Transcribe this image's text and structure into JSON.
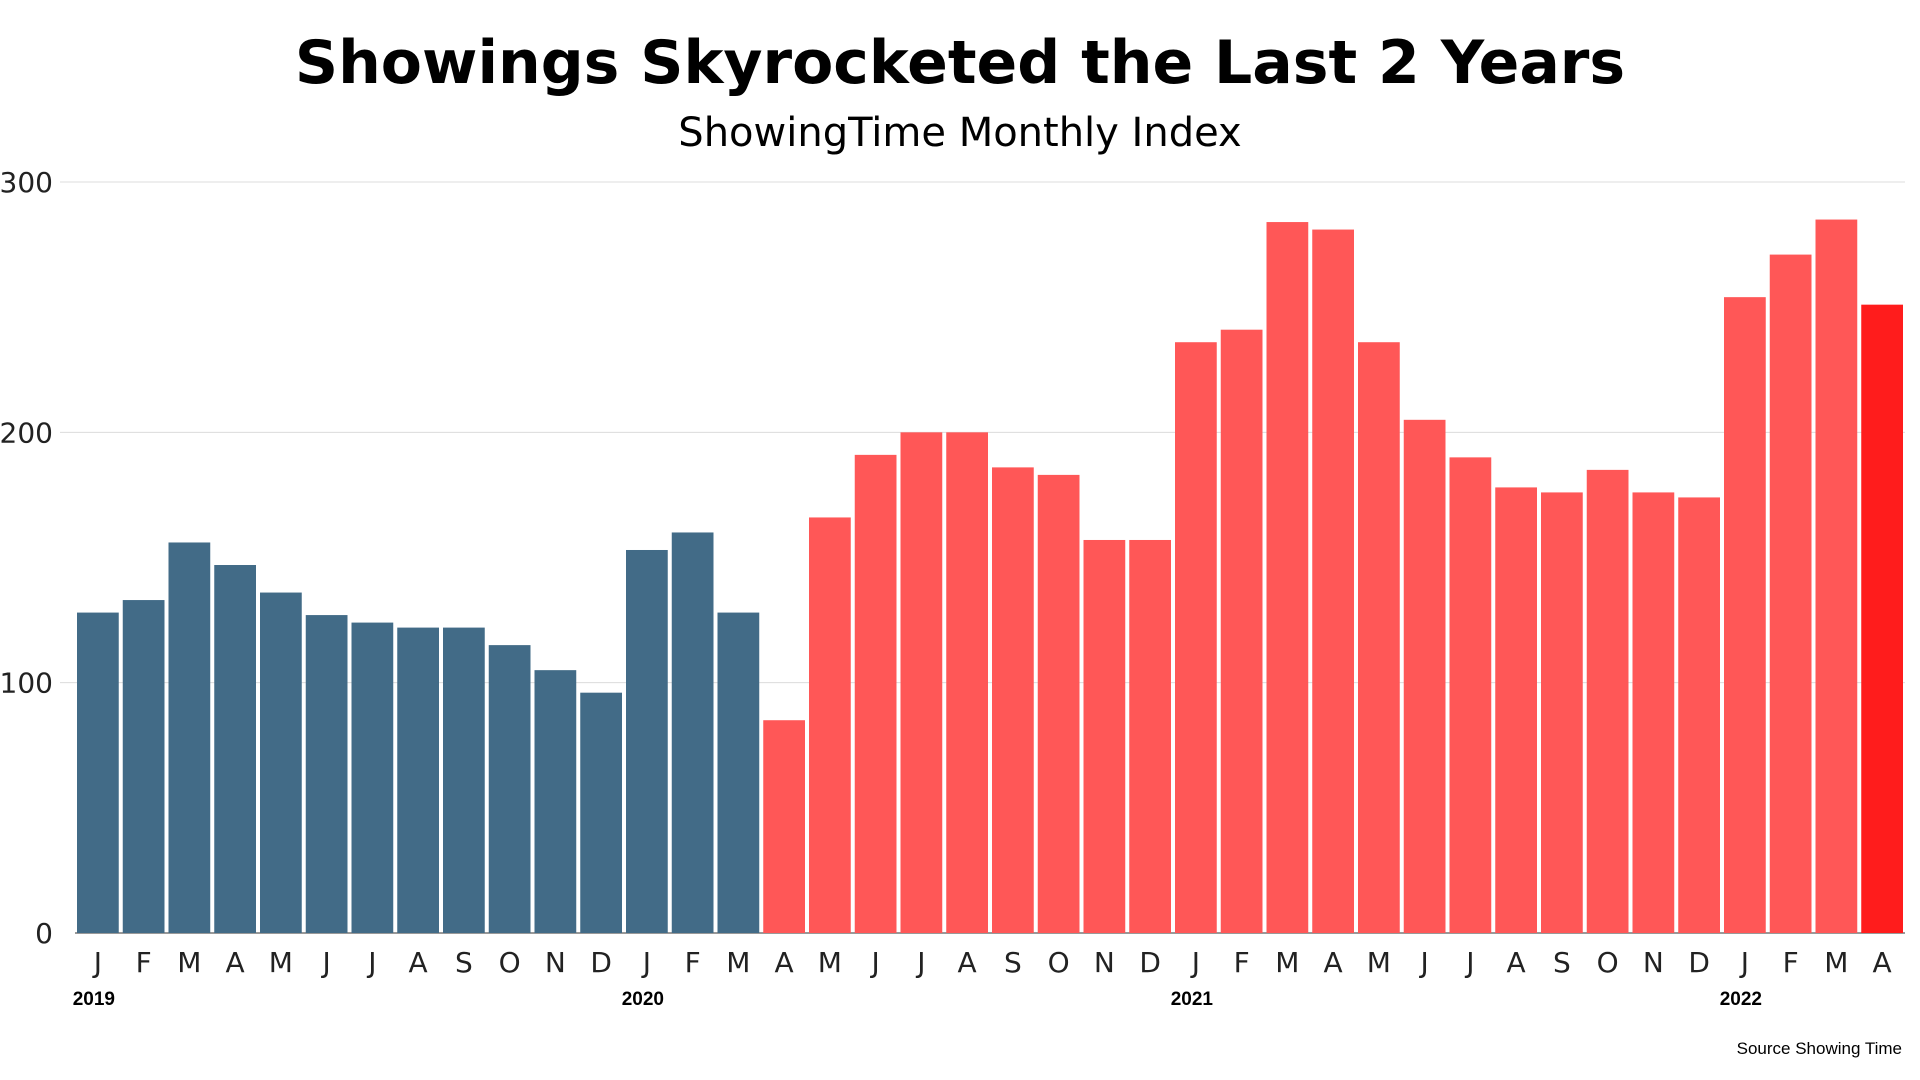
{
  "chart_data": {
    "type": "bar",
    "title": "Showings Skyrocketed the Last 2 Years",
    "subtitle": "ShowingTime Monthly Index",
    "source": "Source Showing Time",
    "ylim": [
      0,
      300
    ],
    "yticks": [
      0,
      100,
      200,
      300
    ],
    "grid": true,
    "categories": [
      "J",
      "F",
      "M",
      "A",
      "M",
      "J",
      "J",
      "A",
      "S",
      "O",
      "N",
      "D",
      "J",
      "F",
      "M",
      "A",
      "M",
      "J",
      "J",
      "A",
      "S",
      "O",
      "N",
      "D",
      "J",
      "F",
      "M",
      "A",
      "M",
      "J",
      "J",
      "A",
      "S",
      "O",
      "N",
      "D",
      "J",
      "F",
      "M",
      "A"
    ],
    "year_labels": [
      {
        "label": "2019",
        "index": 0
      },
      {
        "label": "2020",
        "index": 12
      },
      {
        "label": "2021",
        "index": 24
      },
      {
        "label": "2022",
        "index": 36
      }
    ],
    "values": [
      128,
      133,
      156,
      147,
      136,
      127,
      124,
      122,
      122,
      115,
      105,
      96,
      153,
      160,
      128,
      85,
      166,
      191,
      200,
      200,
      186,
      183,
      157,
      157,
      236,
      241,
      284,
      281,
      236,
      205,
      190,
      178,
      176,
      185,
      176,
      174,
      254,
      271,
      285,
      251
    ],
    "colors": {
      "pre_pandemic": "#426b87",
      "pandemic": "#ff5757",
      "latest": "#ff1c1c"
    },
    "pre_pandemic_count": 15
  }
}
